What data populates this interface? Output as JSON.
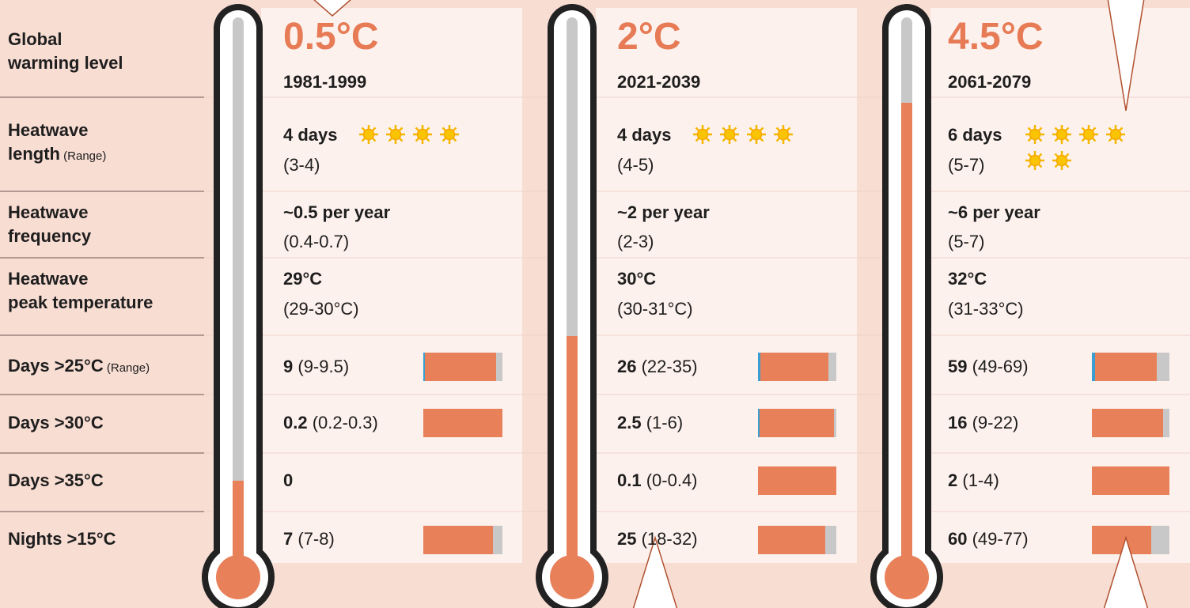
{
  "labels": [
    {
      "lines": [
        "Global",
        "warming level"
      ]
    },
    {
      "lines": [
        "Heatwave",
        "length"
      ],
      "note": "(Range)"
    },
    {
      "lines": [
        "Heatwave",
        "frequency"
      ]
    },
    {
      "lines": [
        "Heatwave",
        "peak temperature"
      ]
    },
    {
      "lines": [
        "Days >25°C"
      ],
      "note": "(Range)"
    },
    {
      "lines": [
        "Days >30°C"
      ]
    },
    {
      "lines": [
        "Days >35°C"
      ]
    },
    {
      "lines": [
        "Nights >15°C"
      ]
    }
  ],
  "columns": [
    {
      "level": "0.5°C",
      "period": "1981-1999",
      "length": "4 days",
      "length_range": "(3-4)",
      "frequency": "~0.5 per year",
      "frequency_range": "(0.4-0.7)",
      "peak": "29°C",
      "peak_range": "(29-30°C)",
      "days25": "9",
      "days25_range": "(9-9.5)",
      "days30": "0.2",
      "days30_range": "(0.2-0.3)",
      "days35": "0",
      "nights15": "7",
      "nights15_range": "(7-8)"
    },
    {
      "level": "2°C",
      "period": "2021-2039",
      "length": "4 days",
      "length_range": "(4-5)",
      "frequency": "~2 per year",
      "frequency_range": "(2-3)",
      "peak": "30°C",
      "peak_range": "(30-31°C)",
      "days25": "26",
      "days25_range": "(22-35)",
      "days30": "2.5",
      "days30_range": "(1-6)",
      "days35": "0.1",
      "days35_range": "(0-0.4)",
      "nights15": "25",
      "nights15_range": "(18-32)"
    },
    {
      "level": "4.5°C",
      "period": "2061-2079",
      "length": "6 days",
      "length_range": "(5-7)",
      "frequency": "~6 per year",
      "frequency_range": "(5-7)",
      "peak": "32°C",
      "peak_range": "(31-33°C)",
      "days25": "59",
      "days25_range": "(49-69)",
      "days30": "16",
      "days30_range": "(9-22)",
      "days35": "2",
      "days35_range": "(1-4)",
      "nights15": "60",
      "nights15_range": "(49-77)"
    }
  ]
}
